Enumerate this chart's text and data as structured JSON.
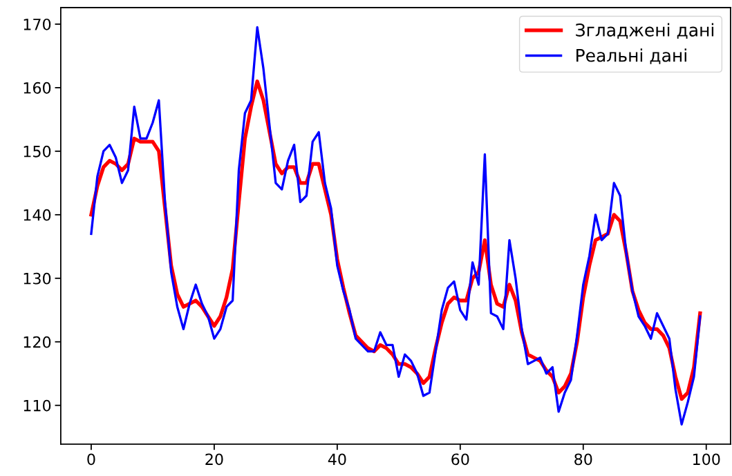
{
  "chart_data": {
    "type": "line",
    "x": [
      0,
      1,
      2,
      3,
      4,
      5,
      6,
      7,
      8,
      9,
      10,
      11,
      12,
      13,
      14,
      15,
      16,
      17,
      18,
      19,
      20,
      21,
      22,
      23,
      24,
      25,
      26,
      27,
      28,
      29,
      30,
      31,
      32,
      33,
      34,
      35,
      36,
      37,
      38,
      39,
      40,
      41,
      42,
      43,
      44,
      45,
      46,
      47,
      48,
      49,
      50,
      51,
      52,
      53,
      54,
      55,
      56,
      57,
      58,
      59,
      60,
      61,
      62,
      63,
      64,
      65,
      66,
      67,
      68,
      69,
      70,
      71,
      72,
      73,
      74,
      75,
      76,
      77,
      78,
      79,
      80,
      81,
      82,
      83,
      84,
      85,
      86,
      87,
      88,
      89,
      90,
      91,
      92,
      93,
      94,
      95,
      96,
      97,
      98,
      99
    ],
    "series": [
      {
        "name": "Згладжені дані",
        "color": "#ff0000",
        "values": [
          140,
          144.5,
          147.5,
          148.5,
          148,
          147,
          148,
          152,
          151.5,
          151.5,
          151.5,
          150,
          141,
          132,
          127.5,
          125.5,
          126,
          126.5,
          125.5,
          124,
          122.5,
          124,
          127,
          131.5,
          142,
          152,
          157,
          161,
          158,
          153,
          148,
          146.5,
          147.5,
          147.5,
          145,
          145,
          148,
          148,
          144,
          140,
          133,
          128.5,
          124.5,
          121,
          120,
          119,
          118.5,
          119.5,
          119,
          118,
          116.5,
          116.5,
          116,
          115,
          113.5,
          114.5,
          119,
          123,
          126,
          127,
          126.5,
          126.5,
          130,
          131,
          136,
          129,
          126,
          125.5,
          129,
          126.5,
          121.5,
          118,
          117.5,
          117,
          115.5,
          114.5,
          112,
          113,
          115,
          120,
          127,
          132,
          136,
          136.5,
          137,
          140,
          139,
          134,
          128,
          125,
          123,
          122,
          122,
          121,
          119,
          114.5,
          111,
          112,
          116,
          124.5
        ]
      },
      {
        "name": "Реальні дані",
        "color": "#0000ff",
        "values": [
          137,
          146,
          150,
          151,
          149,
          145,
          147,
          157,
          152,
          152,
          154.5,
          158,
          142,
          131,
          125.5,
          122,
          126,
          129,
          126,
          124,
          120.5,
          122,
          125.5,
          126.5,
          147,
          156,
          158,
          169.5,
          163,
          154,
          145,
          144,
          148.5,
          151,
          142,
          143,
          151.5,
          153,
          145,
          141,
          132,
          128,
          125,
          120.5,
          119.5,
          118.5,
          118.5,
          121.5,
          119.5,
          119.5,
          114.5,
          118,
          117,
          115,
          111.5,
          112,
          118.5,
          125,
          128.5,
          129.5,
          125,
          123.5,
          132.5,
          129,
          149.5,
          124.5,
          124,
          122,
          136,
          130,
          122,
          116.5,
          117,
          117.5,
          115,
          116,
          109,
          112,
          114,
          121,
          129,
          133.5,
          140,
          136,
          137,
          145,
          143,
          134,
          128,
          124,
          122.5,
          120.5,
          124.5,
          122.5,
          120.5,
          112.5,
          107,
          110.5,
          114.5,
          124
        ]
      }
    ],
    "xlim": [
      -4.95,
      103.95
    ],
    "xticks": [
      0,
      20,
      40,
      60,
      80,
      100
    ],
    "ylim": [
      103.9,
      172.6
    ],
    "yticks": [
      110,
      120,
      130,
      140,
      150,
      160,
      170
    ],
    "legend": "top right",
    "grid": false,
    "marker": "none",
    "line_style": "solid"
  }
}
